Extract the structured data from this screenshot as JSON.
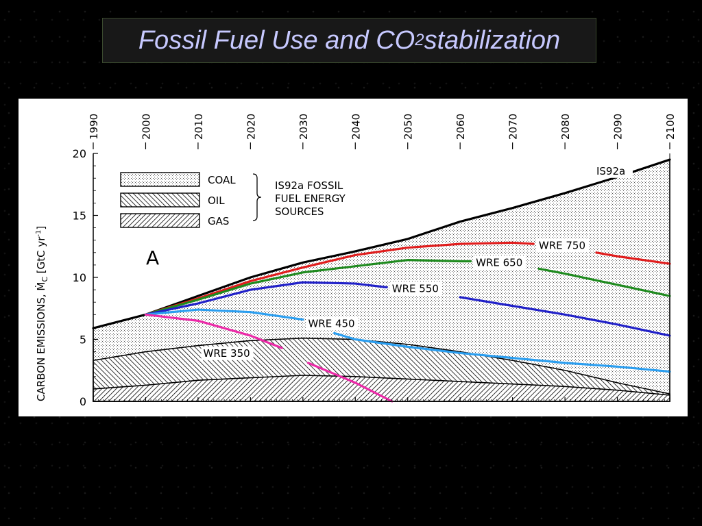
{
  "title": {
    "prefix": "Fossil Fuel Use and CO",
    "subscript": "2",
    "suffix": " stabilization"
  },
  "chart_data": {
    "type": "area",
    "panel_label": "A",
    "ylabel": "CARBON EMISSIONS, Ṁ",
    "ylabel_sub": "C",
    "ylabel_unit": " [GtC yr",
    "ylabel_exp": "-1",
    "ylabel_end": "]",
    "xlim": [
      1990,
      2100
    ],
    "ylim": [
      0,
      20
    ],
    "x_ticks": [
      1990,
      2000,
      2010,
      2020,
      2030,
      2040,
      2050,
      2060,
      2070,
      2080,
      2090,
      2100
    ],
    "y_ticks": [
      0,
      5,
      10,
      15,
      20
    ],
    "legend": {
      "items": [
        "COAL",
        "OIL",
        "GAS"
      ],
      "group_label": [
        "IS92a FOSSIL",
        "FUEL ENERGY",
        "SOURCES"
      ]
    },
    "stacked_areas": [
      {
        "name": "GAS",
        "x": [
          1990,
          2000,
          2010,
          2020,
          2030,
          2040,
          2050,
          2060,
          2070,
          2080,
          2090,
          2100
        ],
        "y": [
          1.0,
          1.3,
          1.7,
          1.9,
          2.1,
          2.0,
          1.8,
          1.6,
          1.4,
          1.2,
          0.9,
          0.5
        ]
      },
      {
        "name": "OIL",
        "x": [
          1990,
          2000,
          2010,
          2020,
          2030,
          2040,
          2050,
          2060,
          2070,
          2080,
          2090,
          2100
        ],
        "y": [
          3.3,
          4.0,
          4.5,
          4.9,
          5.1,
          5.0,
          4.6,
          4.0,
          3.3,
          2.5,
          1.5,
          0.6
        ]
      },
      {
        "name": "COAL",
        "x": [
          1990,
          2000,
          2010,
          2020,
          2030,
          2040,
          2050,
          2060,
          2070,
          2080,
          2090,
          2100
        ],
        "y": [
          5.9,
          7.0,
          8.5,
          10.0,
          11.2,
          12.1,
          13.1,
          14.5,
          15.6,
          16.8,
          18.1,
          19.5
        ]
      }
    ],
    "series": [
      {
        "name": "IS92a",
        "label": "IS92a",
        "color": "#000000",
        "x": [
          1990,
          2000,
          2010,
          2020,
          2030,
          2040,
          2050,
          2060,
          2070,
          2080,
          2090,
          2100
        ],
        "y": [
          5.9,
          7.0,
          8.5,
          10.0,
          11.2,
          12.1,
          13.1,
          14.5,
          15.6,
          16.8,
          18.1,
          19.5
        ]
      },
      {
        "name": "WRE 750",
        "label": "WRE 750",
        "color": "#e01c1c",
        "segments": [
          {
            "x": [
              2000,
              2010,
              2020,
              2030,
              2040,
              2050,
              2060,
              2070,
              2074
            ],
            "y": [
              7.0,
              8.3,
              9.7,
              10.8,
              11.8,
              12.4,
              12.7,
              12.8,
              12.7
            ]
          },
          {
            "x": [
              2086,
              2090,
              2100
            ],
            "y": [
              12.0,
              11.7,
              11.1
            ]
          }
        ]
      },
      {
        "name": "WRE 650",
        "label": "WRE 650",
        "color": "#1e8a1e",
        "segments": [
          {
            "x": [
              2000,
              2010,
              2020,
              2030,
              2040,
              2050,
              2060,
              2062
            ],
            "y": [
              7.0,
              8.2,
              9.5,
              10.4,
              10.9,
              11.4,
              11.3,
              11.3
            ]
          },
          {
            "x": [
              2075,
              2080,
              2090,
              2100
            ],
            "y": [
              10.7,
              10.3,
              9.4,
              8.5
            ]
          }
        ]
      },
      {
        "name": "WRE 550",
        "label": "WRE 550",
        "color": "#2020c8",
        "segments": [
          {
            "x": [
              2000,
              2010,
              2020,
              2030,
              2040,
              2046
            ],
            "y": [
              7.0,
              7.9,
              9.0,
              9.6,
              9.5,
              9.2
            ]
          },
          {
            "x": [
              2060,
              2070,
              2080,
              2090,
              2100
            ],
            "y": [
              8.4,
              7.7,
              7.0,
              6.2,
              5.3
            ]
          }
        ]
      },
      {
        "name": "WRE 450",
        "label": "WRE 450",
        "color": "#2a9ef0",
        "segments": [
          {
            "x": [
              2000,
              2010,
              2020,
              2030
            ],
            "y": [
              7.0,
              7.4,
              7.2,
              6.6
            ]
          },
          {
            "x": [
              2036,
              2040,
              2050,
              2060,
              2070,
              2080,
              2090,
              2100
            ],
            "y": [
              5.5,
              5.0,
              4.4,
              3.9,
              3.5,
              3.1,
              2.8,
              2.4
            ]
          }
        ]
      },
      {
        "name": "WRE 350",
        "label": "WRE 350",
        "color": "#ec2aa8",
        "segments": [
          {
            "x": [
              2000,
              2010,
              2020,
              2026
            ],
            "y": [
              7.0,
              6.5,
              5.3,
              4.3
            ]
          },
          {
            "x": [
              2031,
              2040,
              2047
            ],
            "y": [
              3.1,
              1.5,
              0.0
            ]
          }
        ]
      }
    ],
    "grid": false,
    "legend_position": "top-left"
  }
}
